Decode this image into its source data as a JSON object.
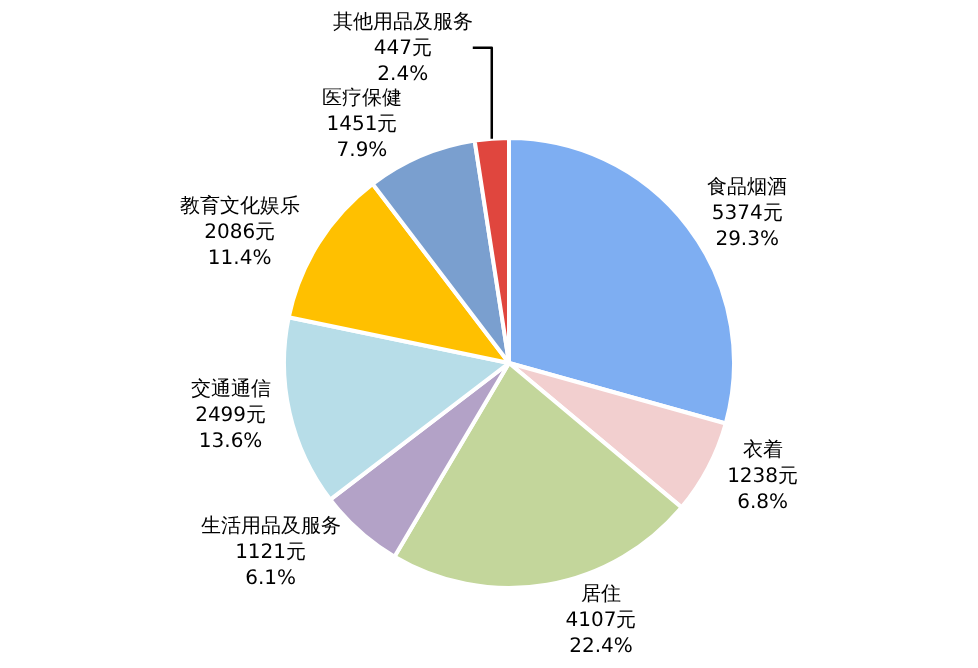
{
  "chart_data": {
    "type": "pie",
    "categories": [
      "食品烟酒",
      "衣着",
      "居住",
      "生活用品及服务",
      "交通通信",
      "教育文化娱乐",
      "医疗保健",
      "其他用品及服务"
    ],
    "values": [
      5374,
      1238,
      4107,
      1121,
      2499,
      2086,
      1451,
      447
    ],
    "value_labels": [
      "5374元\n29.3%",
      "1238元\n6.8%",
      "4107元\n22.4%",
      "1121元\n6.1%",
      "2499元\n13.6%",
      "2086元\n11.4%",
      "1451元\n7.9%",
      "447元\n2.4%"
    ],
    "colors": [
      "#7eaef2",
      "#f2cfcf",
      "#c3d69b",
      "#b3a2c7",
      "#b7dde8",
      "#ffc000",
      "#7a9fcf",
      "#e0463e"
    ],
    "legend": false
  }
}
